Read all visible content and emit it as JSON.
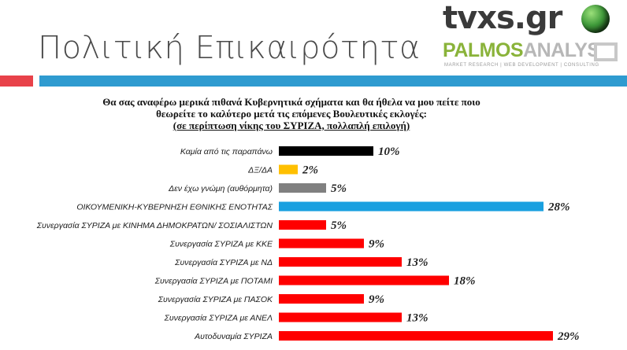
{
  "title": "Πολιτική Επικαιρότητα",
  "logos": {
    "tvxs": "tvxs.gr",
    "palmos_a": "PALMOS",
    "palmos_b": "ANALYSIS",
    "palmos_tagline": "MARKET RESEARCH | WEB DEVELOPMENT | CONSULTING"
  },
  "colors": {
    "black": "#000000",
    "yellow": "#ffc000",
    "gray": "#808080",
    "blue": "#1aa0e0",
    "red": "#ff0000",
    "accent_red": "#e8424a",
    "accent_blue": "#2f9bd0"
  },
  "chart_data": {
    "type": "bar",
    "orientation": "horizontal",
    "title_lines": [
      "Θα σας αναφέρω μερικά πιθανά Κυβερνητικά σχήματα και θα ήθελα να μου πείτε ποιο",
      "θεωρείτε το καλύτερο μετά τις επόμενες Βουλευτικές εκλογές:"
    ],
    "subtitle": "(σε περίπτωση νίκης του ΣΥΡΙΖΑ, πολλαπλή επιλογή)",
    "categories": [
      "Καμία από τις παραπάνω",
      "ΔΞ/ΔΑ",
      "Δεν έχω γνώμη (αυθόρμητα)",
      "ΟΙΚΟΥΜΕΝΙΚΗ-ΚΥΒΕΡΝΗΣΗ ΕΘΝΙΚΗΣ ΕΝΟΤΗΤΑΣ",
      "Συνεργασία ΣΥΡΙΖΑ με ΚΙΝΗΜΑ ΔΗΜΟΚΡΑΤΩΝ/ ΣΟΣΙΑΛΙΣΤΩΝ",
      "Συνεργασία ΣΥΡΙΖΑ με ΚΚΕ",
      "Συνεργασία ΣΥΡΙΖΑ με ΝΔ",
      "Συνεργασία ΣΥΡΙΖΑ με ΠΟΤΑΜΙ",
      "Συνεργασία ΣΥΡΙΖΑ με ΠΑΣΟΚ",
      "Συνεργασία ΣΥΡΙΖΑ με ΑΝΕΛ",
      "Αυτοδυναμία ΣΥΡΙΖΑ"
    ],
    "values": [
      10,
      2,
      5,
      28,
      5,
      9,
      13,
      18,
      9,
      13,
      29
    ],
    "value_labels": [
      "10%",
      "2%",
      "5%",
      "28%",
      "5%",
      "9%",
      "13%",
      "18%",
      "9%",
      "13%",
      "29%"
    ],
    "bar_colors": [
      "black",
      "yellow",
      "gray",
      "blue",
      "red",
      "red",
      "red",
      "red",
      "red",
      "red",
      "red"
    ],
    "unit": "%",
    "grid": false,
    "legend": "none"
  }
}
